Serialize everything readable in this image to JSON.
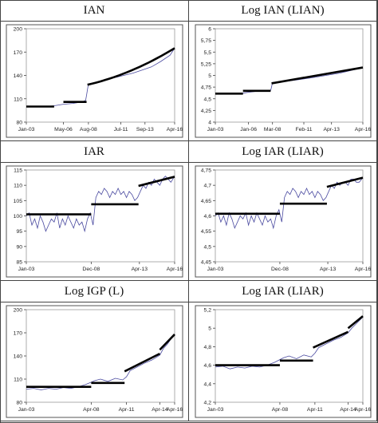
{
  "chart_data": [
    {
      "type": "line",
      "title": "IAN",
      "xlabel": "",
      "ylabel": "",
      "ylim": [
        80,
        200
      ],
      "yticks": [
        "80",
        "110",
        "140",
        "170",
        "200"
      ],
      "ytick_values": [
        80,
        110,
        140,
        170,
        200
      ],
      "xticks": [
        "Jan-03",
        "May-06",
        "Aug-08",
        "Jul-11",
        "Sep-13",
        "Apr-16"
      ],
      "xlim": [
        0,
        160
      ],
      "xtick_positions": [
        0,
        40,
        67,
        102,
        128,
        160
      ],
      "series": [
        {
          "values_x": [
            0,
            20,
            30,
            40,
            50,
            60,
            64,
            65,
            66,
            67,
            75,
            85,
            95,
            105,
            115,
            125,
            135,
            145,
            155,
            160
          ],
          "values_y": [
            100,
            100,
            101,
            103,
            104,
            106,
            108,
            115,
            122,
            129,
            131,
            134,
            137,
            140,
            143,
            147,
            151,
            158,
            166,
            175
          ]
        }
      ],
      "trend": [
        {
          "x": [
            0,
            30
          ],
          "y": [
            100,
            100
          ]
        },
        {
          "x": [
            40,
            65
          ],
          "y": [
            106,
            106
          ]
        },
        {
          "x": [
            66,
            160
          ],
          "y": [
            128,
            175
          ],
          "curve": true
        }
      ]
    },
    {
      "type": "line",
      "title": "Log IAN (LIAN)",
      "xlabel": "",
      "ylabel": "",
      "ylim": [
        4,
        6
      ],
      "yticks": [
        "4",
        "4,25",
        "4,5",
        "4,75",
        "5",
        "5,25",
        "5,5",
        "5,75",
        "6"
      ],
      "ytick_values": [
        4,
        4.25,
        4.5,
        4.75,
        5,
        5.25,
        5.5,
        5.75,
        6
      ],
      "xticks": [
        "Jan-03",
        "Jan-06",
        "Mar-08",
        "Feb-11",
        "Apr-13",
        "Apr-16"
      ],
      "xlim": [
        0,
        160
      ],
      "xtick_positions": [
        0,
        36,
        62,
        96,
        126,
        160
      ],
      "series": [
        {
          "values_x": [
            0,
            20,
            30,
            36,
            45,
            55,
            60,
            61,
            62,
            75,
            90,
            105,
            120,
            135,
            150,
            160
          ],
          "values_y": [
            4.61,
            4.61,
            4.62,
            4.64,
            4.66,
            4.67,
            4.68,
            4.75,
            4.85,
            4.87,
            4.91,
            4.95,
            5.0,
            5.05,
            5.12,
            5.17
          ]
        }
      ],
      "trend": [
        {
          "x": [
            0,
            30
          ],
          "y": [
            4.61,
            4.61
          ]
        },
        {
          "x": [
            30,
            60
          ],
          "y": [
            4.67,
            4.67
          ]
        },
        {
          "x": [
            61,
            160
          ],
          "y": [
            4.83,
            5.17
          ]
        }
      ]
    },
    {
      "type": "line",
      "title": "IAR",
      "xlabel": "",
      "ylabel": "",
      "ylim": [
        85,
        115
      ],
      "yticks": [
        "85",
        "90",
        "95",
        "100",
        "105",
        "110",
        "115"
      ],
      "ytick_values": [
        85,
        90,
        95,
        100,
        105,
        110,
        115
      ],
      "xticks": [
        "Jan-03",
        "Dec-08",
        "Apr-13",
        "Apr-16"
      ],
      "xlim": [
        0,
        160
      ],
      "xtick_positions": [
        0,
        70,
        122,
        160
      ],
      "series": [
        {
          "values_x": [
            0,
            3,
            6,
            9,
            12,
            15,
            18,
            21,
            24,
            27,
            30,
            33,
            36,
            39,
            42,
            45,
            48,
            51,
            54,
            57,
            60,
            63,
            66,
            69,
            72,
            75,
            78,
            81,
            84,
            87,
            90,
            93,
            96,
            99,
            102,
            105,
            108,
            111,
            114,
            117,
            120,
            123,
            126,
            129,
            132,
            135,
            138,
            141,
            144,
            147,
            150,
            153,
            156,
            160
          ],
          "values_y": [
            100,
            101,
            97,
            99,
            96,
            100,
            98,
            95,
            97,
            99,
            98,
            101,
            96,
            99,
            97,
            100,
            98,
            96,
            99,
            97,
            98,
            95,
            99,
            101,
            97,
            106,
            108,
            107,
            109,
            108,
            106,
            108,
            107,
            109,
            107,
            108,
            106,
            108,
            107,
            105,
            106,
            108,
            110,
            109,
            111,
            110,
            112,
            111,
            110,
            112,
            113,
            112,
            111,
            113
          ]
        }
      ],
      "trend": [
        {
          "x": [
            0,
            70
          ],
          "y": [
            100.5,
            100.5
          ]
        },
        {
          "x": [
            70,
            121
          ],
          "y": [
            103.8,
            103.8
          ]
        },
        {
          "x": [
            121,
            160
          ],
          "y": [
            109.8,
            112.8
          ]
        }
      ]
    },
    {
      "type": "line",
      "title": "Log IAR (LIAR)",
      "xlabel": "",
      "ylabel": "",
      "ylim": [
        4.45,
        4.75
      ],
      "yticks": [
        "4,45",
        "4,5",
        "4,55",
        "4,6",
        "4,65",
        "4,7",
        "4,75"
      ],
      "ytick_values": [
        4.45,
        4.5,
        4.55,
        4.6,
        4.65,
        4.7,
        4.75
      ],
      "xticks": [
        "Jan-03",
        "Dec-08",
        "Apr-13",
        "Apr-16"
      ],
      "xlim": [
        0,
        160
      ],
      "xtick_positions": [
        0,
        70,
        122,
        160
      ],
      "series": [
        {
          "values_x": [
            0,
            3,
            6,
            9,
            12,
            15,
            18,
            21,
            24,
            27,
            30,
            33,
            36,
            39,
            42,
            45,
            48,
            51,
            54,
            57,
            60,
            63,
            66,
            69,
            72,
            75,
            78,
            81,
            84,
            87,
            90,
            93,
            96,
            99,
            102,
            105,
            108,
            111,
            114,
            117,
            120,
            123,
            126,
            129,
            132,
            135,
            138,
            141,
            144,
            147,
            150,
            153,
            156,
            160
          ],
          "values_y": [
            4.6,
            4.61,
            4.58,
            4.6,
            4.57,
            4.61,
            4.59,
            4.56,
            4.58,
            4.6,
            4.59,
            4.61,
            4.57,
            4.6,
            4.58,
            4.61,
            4.59,
            4.57,
            4.6,
            4.58,
            4.59,
            4.56,
            4.6,
            4.62,
            4.58,
            4.66,
            4.68,
            4.67,
            4.69,
            4.68,
            4.66,
            4.68,
            4.67,
            4.69,
            4.67,
            4.68,
            4.66,
            4.68,
            4.67,
            4.65,
            4.66,
            4.68,
            4.7,
            4.69,
            4.71,
            4.7,
            4.71,
            4.71,
            4.7,
            4.72,
            4.72,
            4.71,
            4.71,
            4.725
          ]
        }
      ],
      "trend": [
        {
          "x": [
            0,
            70
          ],
          "y": [
            4.607,
            4.607
          ]
        },
        {
          "x": [
            70,
            121
          ],
          "y": [
            4.64,
            4.64
          ]
        },
        {
          "x": [
            121,
            160
          ],
          "y": [
            4.695,
            4.725
          ]
        }
      ]
    },
    {
      "type": "line",
      "title": "Log IGP (L)",
      "xlabel": "",
      "ylabel": "",
      "ylim": [
        80,
        200
      ],
      "yticks": [
        "80",
        "110",
        "140",
        "170",
        "200"
      ],
      "ytick_values": [
        80,
        110,
        140,
        170,
        200
      ],
      "xticks": [
        "Jan-03",
        "Apr-08",
        "Apr-11",
        "Apr-14",
        "Apr-16"
      ],
      "xlim": [
        0,
        160
      ],
      "xtick_positions": [
        0,
        70,
        108,
        144,
        160
      ],
      "series": [
        {
          "values_x": [
            0,
            8,
            16,
            24,
            32,
            40,
            48,
            56,
            64,
            70,
            74,
            80,
            88,
            96,
            104,
            108,
            112,
            120,
            128,
            136,
            144,
            148,
            152,
            156,
            160
          ],
          "values_y": [
            97,
            98,
            96,
            98,
            97,
            99,
            98,
            100,
            103,
            106,
            108,
            110,
            107,
            111,
            109,
            113,
            121,
            126,
            131,
            135,
            141,
            150,
            155,
            162,
            167
          ]
        }
      ],
      "trend": [
        {
          "x": [
            0,
            70
          ],
          "y": [
            100,
            100
          ]
        },
        {
          "x": [
            70,
            106
          ],
          "y": [
            105,
            105
          ]
        },
        {
          "x": [
            106,
            144
          ],
          "y": [
            120,
            143
          ]
        },
        {
          "x": [
            144,
            160
          ],
          "y": [
            148,
            168
          ]
        }
      ]
    },
    {
      "type": "line",
      "title": "Log IAR (LIAR)",
      "xlabel": "",
      "ylabel": "",
      "ylim": [
        4.2,
        5.2
      ],
      "yticks": [
        "4,2",
        "4,4",
        "4,6",
        "4,8",
        "5",
        "5,2"
      ],
      "ytick_values": [
        4.2,
        4.4,
        4.6,
        4.8,
        5.0,
        5.2
      ],
      "xticks": [
        "Jan-03",
        "Apr-08",
        "Apr-11",
        "Apr-14",
        "Apr-16"
      ],
      "xlim": [
        0,
        160
      ],
      "xtick_positions": [
        0,
        70,
        108,
        144,
        160
      ],
      "series": [
        {
          "values_x": [
            0,
            8,
            16,
            24,
            32,
            40,
            48,
            56,
            64,
            70,
            74,
            80,
            88,
            96,
            104,
            108,
            112,
            120,
            128,
            136,
            144,
            148,
            152,
            156,
            160
          ],
          "values_y": [
            4.58,
            4.59,
            4.56,
            4.58,
            4.57,
            4.59,
            4.58,
            4.6,
            4.63,
            4.66,
            4.68,
            4.7,
            4.67,
            4.71,
            4.69,
            4.73,
            4.79,
            4.83,
            4.87,
            4.9,
            4.95,
            5.0,
            5.04,
            5.08,
            5.12
          ]
        }
      ],
      "trend": [
        {
          "x": [
            0,
            70
          ],
          "y": [
            4.6,
            4.6
          ]
        },
        {
          "x": [
            70,
            106
          ],
          "y": [
            4.65,
            4.65
          ]
        },
        {
          "x": [
            106,
            144
          ],
          "y": [
            4.79,
            4.96
          ]
        },
        {
          "x": [
            144,
            160
          ],
          "y": [
            5.0,
            5.13
          ]
        }
      ]
    }
  ]
}
